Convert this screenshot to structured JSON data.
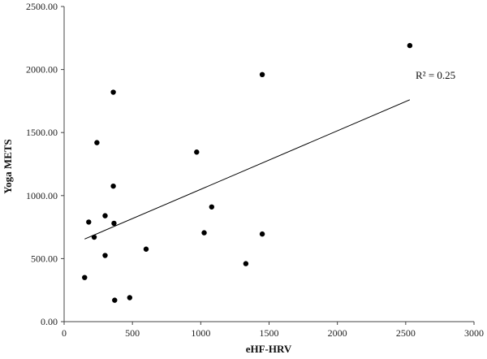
{
  "chart_data": {
    "type": "scatter",
    "xlabel": "eHF-HRV",
    "ylabel": "Yoga METS",
    "xlim": [
      0,
      3000
    ],
    "ylim": [
      0,
      2500
    ],
    "x_ticks": [
      "0",
      "500",
      "1000",
      "1500",
      "2000",
      "2500",
      "3000"
    ],
    "y_ticks": [
      "0.00",
      "500.00",
      "1000.00",
      "1500.00",
      "2000.00",
      "2500.00"
    ],
    "grid": false,
    "legend": "none",
    "points": [
      {
        "x": 150,
        "y": 350
      },
      {
        "x": 180,
        "y": 790
      },
      {
        "x": 220,
        "y": 670
      },
      {
        "x": 240,
        "y": 1420
      },
      {
        "x": 300,
        "y": 840
      },
      {
        "x": 300,
        "y": 525
      },
      {
        "x": 360,
        "y": 1820
      },
      {
        "x": 360,
        "y": 1075
      },
      {
        "x": 365,
        "y": 780
      },
      {
        "x": 370,
        "y": 170
      },
      {
        "x": 480,
        "y": 190
      },
      {
        "x": 600,
        "y": 575
      },
      {
        "x": 970,
        "y": 1345
      },
      {
        "x": 1025,
        "y": 705
      },
      {
        "x": 1080,
        "y": 910
      },
      {
        "x": 1330,
        "y": 460
      },
      {
        "x": 1450,
        "y": 1960
      },
      {
        "x": 1450,
        "y": 695
      },
      {
        "x": 2530,
        "y": 2190
      }
    ],
    "trendline": {
      "x": [
        150,
        2530
      ],
      "y": [
        655,
        1760
      ]
    },
    "annotation": "R² = 0.25",
    "point_color": "#000000",
    "line_color": "#000000"
  }
}
